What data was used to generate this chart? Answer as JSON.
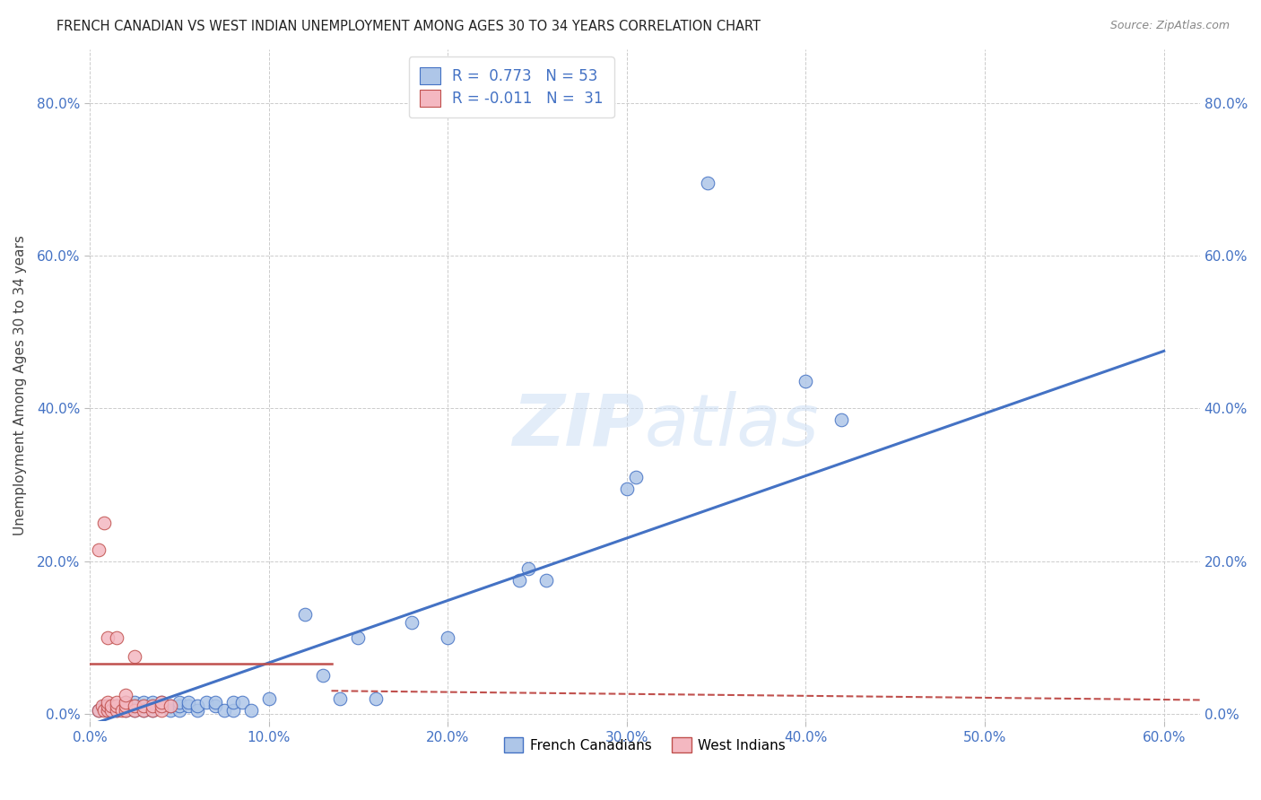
{
  "title": "FRENCH CANADIAN VS WEST INDIAN UNEMPLOYMENT AMONG AGES 30 TO 34 YEARS CORRELATION CHART",
  "source": "Source: ZipAtlas.com",
  "ylabel_label": "Unemployment Among Ages 30 to 34 years",
  "xlim": [
    0.0,
    0.62
  ],
  "ylim": [
    -0.01,
    0.87
  ],
  "watermark": "ZIPatlas",
  "legend_labels": [
    "French Canadians",
    "West Indians"
  ],
  "french_color": "#aec6e8",
  "west_color": "#f4b8c1",
  "french_line_color": "#4472c4",
  "west_line_color": "#c0504d",
  "background_color": "#ffffff",
  "grid_color": "#cccccc",
  "tick_color": "#4472c4",
  "french_scatter": [
    [
      0.005,
      0.005
    ],
    [
      0.008,
      0.01
    ],
    [
      0.01,
      0.005
    ],
    [
      0.012,
      0.01
    ],
    [
      0.015,
      0.005
    ],
    [
      0.015,
      0.01
    ],
    [
      0.02,
      0.005
    ],
    [
      0.02,
      0.01
    ],
    [
      0.02,
      0.015
    ],
    [
      0.025,
      0.005
    ],
    [
      0.025,
      0.01
    ],
    [
      0.025,
      0.015
    ],
    [
      0.03,
      0.005
    ],
    [
      0.03,
      0.01
    ],
    [
      0.03,
      0.015
    ],
    [
      0.035,
      0.005
    ],
    [
      0.035,
      0.01
    ],
    [
      0.035,
      0.015
    ],
    [
      0.04,
      0.01
    ],
    [
      0.04,
      0.015
    ],
    [
      0.045,
      0.005
    ],
    [
      0.045,
      0.01
    ],
    [
      0.05,
      0.005
    ],
    [
      0.05,
      0.01
    ],
    [
      0.05,
      0.015
    ],
    [
      0.055,
      0.01
    ],
    [
      0.055,
      0.015
    ],
    [
      0.06,
      0.005
    ],
    [
      0.06,
      0.01
    ],
    [
      0.065,
      0.015
    ],
    [
      0.07,
      0.01
    ],
    [
      0.07,
      0.015
    ],
    [
      0.075,
      0.005
    ],
    [
      0.08,
      0.005
    ],
    [
      0.08,
      0.015
    ],
    [
      0.085,
      0.015
    ],
    [
      0.09,
      0.005
    ],
    [
      0.1,
      0.02
    ],
    [
      0.12,
      0.13
    ],
    [
      0.13,
      0.05
    ],
    [
      0.14,
      0.02
    ],
    [
      0.15,
      0.1
    ],
    [
      0.16,
      0.02
    ],
    [
      0.18,
      0.12
    ],
    [
      0.2,
      0.1
    ],
    [
      0.24,
      0.175
    ],
    [
      0.245,
      0.19
    ],
    [
      0.255,
      0.175
    ],
    [
      0.3,
      0.295
    ],
    [
      0.305,
      0.31
    ],
    [
      0.345,
      0.695
    ],
    [
      0.4,
      0.435
    ],
    [
      0.42,
      0.385
    ]
  ],
  "west_scatter": [
    [
      0.005,
      0.005
    ],
    [
      0.007,
      0.01
    ],
    [
      0.008,
      0.005
    ],
    [
      0.01,
      0.005
    ],
    [
      0.01,
      0.01
    ],
    [
      0.01,
      0.015
    ],
    [
      0.012,
      0.005
    ],
    [
      0.012,
      0.01
    ],
    [
      0.015,
      0.005
    ],
    [
      0.015,
      0.01
    ],
    [
      0.015,
      0.015
    ],
    [
      0.018,
      0.005
    ],
    [
      0.02,
      0.005
    ],
    [
      0.02,
      0.01
    ],
    [
      0.02,
      0.015
    ],
    [
      0.025,
      0.005
    ],
    [
      0.025,
      0.01
    ],
    [
      0.03,
      0.005
    ],
    [
      0.03,
      0.01
    ],
    [
      0.035,
      0.005
    ],
    [
      0.035,
      0.01
    ],
    [
      0.04,
      0.005
    ],
    [
      0.04,
      0.01
    ],
    [
      0.04,
      0.015
    ],
    [
      0.045,
      0.01
    ],
    [
      0.005,
      0.215
    ],
    [
      0.008,
      0.25
    ],
    [
      0.01,
      0.1
    ],
    [
      0.015,
      0.1
    ],
    [
      0.02,
      0.025
    ],
    [
      0.025,
      0.075
    ]
  ],
  "french_line": [
    0.0,
    -0.015,
    0.6,
    0.475
  ],
  "west_line_solid": [
    0.0,
    0.065,
    0.135,
    0.065
  ],
  "west_line_dashed": [
    0.135,
    0.03,
    0.62,
    0.018
  ]
}
